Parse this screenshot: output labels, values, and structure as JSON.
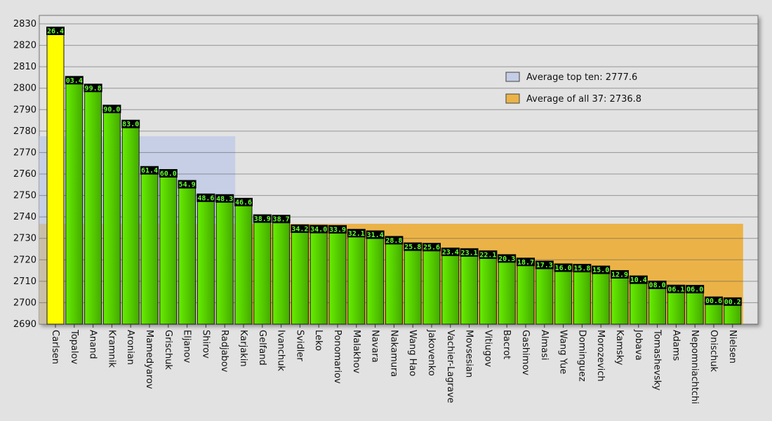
{
  "chart_data": {
    "type": "bar",
    "title": "",
    "xlabel": "",
    "ylabel": "",
    "ylim": [
      2690,
      2830
    ],
    "yticks": [
      2690,
      2700,
      2710,
      2720,
      2730,
      2740,
      2750,
      2760,
      2770,
      2780,
      2790,
      2800,
      2810,
      2820,
      2830
    ],
    "grid": "horizontal",
    "legend_position": "top-right",
    "categories": [
      "Carlsen",
      "Topalov",
      "Anand",
      "Kramnik",
      "Aronian",
      "Mamedyarov",
      "Grischuk",
      "Eljanov",
      "Shirov",
      "Radjabov",
      "Karjakin",
      "Gelfand",
      "Ivanchuk",
      "Svidler",
      "Leko",
      "Ponomariov",
      "Malakhov",
      "Navara",
      "Nakamura",
      "Wang Hao",
      "Jakovenko",
      "Vachier-Lagrave",
      "Movsesian",
      "Vitiugov",
      "Bacrot",
      "Gashimov",
      "Almasi",
      "Wang Yue",
      "Dominguez",
      "Morozevich",
      "Kamsky",
      "Jobava",
      "Tomashevsky",
      "Adams",
      "Nepomniachtchi",
      "Onischuk",
      "Nielsen"
    ],
    "values": [
      2826.4,
      2803.4,
      2799.8,
      2790.0,
      2783.0,
      2761.4,
      2760.0,
      2754.9,
      2748.6,
      2748.3,
      2746.6,
      2738.9,
      2738.7,
      2734.2,
      2734.0,
      2733.9,
      2732.1,
      2731.4,
      2728.8,
      2725.8,
      2725.6,
      2723.4,
      2723.1,
      2722.1,
      2720.3,
      2718.7,
      2717.3,
      2716.0,
      2715.8,
      2715.0,
      2712.9,
      2710.4,
      2708.0,
      2706.1,
      2706.0,
      2700.6,
      2700.2
    ],
    "value_labels": [
      "26.4",
      "03.4",
      "99.8",
      "90.0",
      "83.0",
      "61.4",
      "60.0",
      "54.9",
      "48.6",
      "48.3",
      "46.6",
      "38.9",
      "38.7",
      "34.2",
      "34.0",
      "33.9",
      "32.1",
      "31.4",
      "28.8",
      "25.8",
      "25.6",
      "23.4",
      "23.1",
      "22.1",
      "20.3",
      "18.7",
      "17.3",
      "16.0",
      "15.8",
      "15.0",
      "12.9",
      "10.4",
      "08.0",
      "06.1",
      "06.0",
      "00.6",
      "00.2"
    ],
    "averages": [
      {
        "label": "Average top ten: 2777.6",
        "value": 2777.6,
        "span": 10,
        "color": "#c4cde6"
      },
      {
        "label": "Average of all 37: 2736.8",
        "value": 2736.8,
        "span": 37,
        "color": "#ebb347"
      }
    ],
    "colors": {
      "highlight_bar": "#ffff00",
      "bar_gradient": [
        "#66ee00",
        "#44aa00"
      ],
      "value_label_bg": "#000000",
      "value_label_text": "#66ff33"
    }
  }
}
